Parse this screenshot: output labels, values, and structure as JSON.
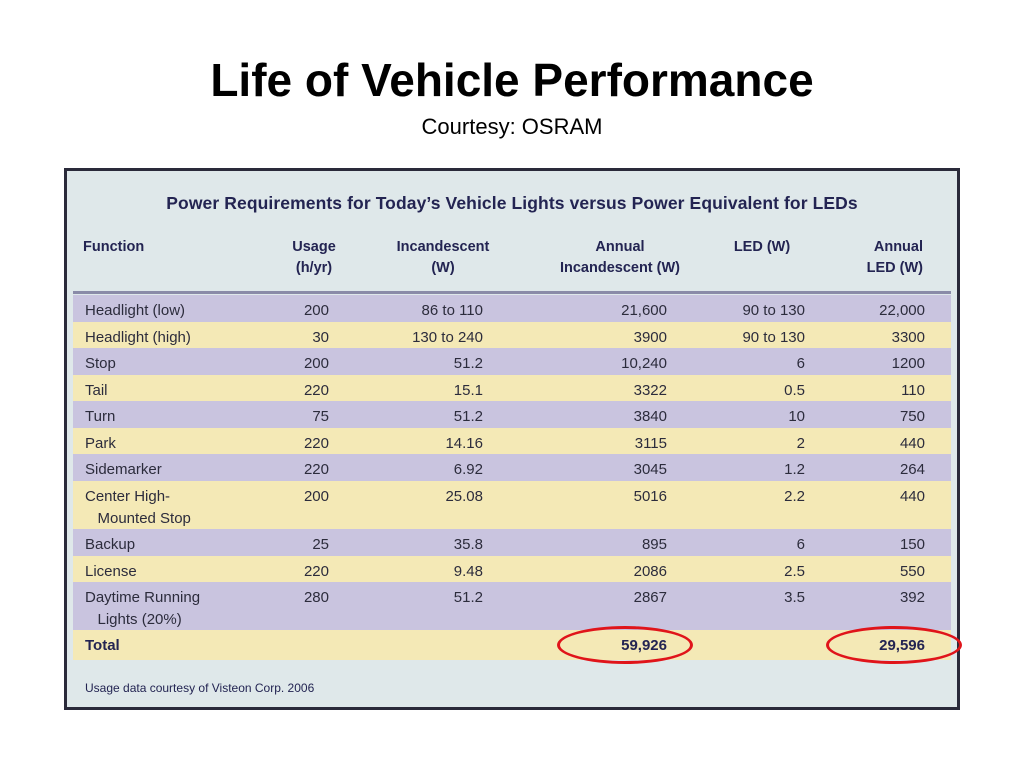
{
  "slide": {
    "title": "Life of Vehicle Performance",
    "subtitle": "Courtesy: OSRAM"
  },
  "table": {
    "title": "Power Requirements for Today’s Vehicle Lights versus Power Equivalent for LEDs",
    "headers": [
      {
        "l1": "Function",
        "l2": ""
      },
      {
        "l1": "Usage",
        "l2": "(h/yr)"
      },
      {
        "l1": "Incandescent",
        "l2": "(W)"
      },
      {
        "l1": "Annual",
        "l2": "Incandescent (W)"
      },
      {
        "l1": "LED (W)",
        "l2": ""
      },
      {
        "l1": "Annual",
        "l2": "LED (W)"
      }
    ],
    "rows": [
      {
        "function": "Headlight (low)",
        "usage": "200",
        "incandescent": "86 to 110",
        "annual_incandescent": "21,600",
        "led": "90 to 130",
        "annual_led": "22,000"
      },
      {
        "function": "Headlight (high)",
        "usage": "30",
        "incandescent": "130 to 240",
        "annual_incandescent": "3900",
        "led": "90 to 130",
        "annual_led": "3300"
      },
      {
        "function": "Stop",
        "usage": "200",
        "incandescent": "51.2",
        "annual_incandescent": "10,240",
        "led": "6",
        "annual_led": "1200"
      },
      {
        "function": "Tail",
        "usage": "220",
        "incandescent": "15.1",
        "annual_incandescent": "3322",
        "led": "0.5",
        "annual_led": "110"
      },
      {
        "function": "Turn",
        "usage": "75",
        "incandescent": "51.2",
        "annual_incandescent": "3840",
        "led": "10",
        "annual_led": "750"
      },
      {
        "function": "Park",
        "usage": "220",
        "incandescent": "14.16",
        "annual_incandescent": "3115",
        "led": "2",
        "annual_led": "440"
      },
      {
        "function": "Sidemarker",
        "usage": "220",
        "incandescent": "6.92",
        "annual_incandescent": "3045",
        "led": "1.2",
        "annual_led": "264"
      },
      {
        "function": "Center High- \n   Mounted Stop",
        "usage": "200",
        "incandescent": "25.08",
        "annual_incandescent": "5016",
        "led": "2.2",
        "annual_led": "440"
      },
      {
        "function": "Backup",
        "usage": "25",
        "incandescent": "35.8",
        "annual_incandescent": "895",
        "led": "6",
        "annual_led": "150"
      },
      {
        "function": "License",
        "usage": "220",
        "incandescent": "9.48",
        "annual_incandescent": "2086",
        "led": "2.5",
        "annual_led": "550"
      },
      {
        "function": "Daytime Running\n   Lights (20%)",
        "usage": "280",
        "incandescent": "51.2",
        "annual_incandescent": "2867",
        "led": "3.5",
        "annual_led": "392"
      }
    ],
    "total": {
      "function": "Total",
      "annual_incandescent": "59,926",
      "annual_led": "29,596"
    },
    "footnote": "Usage data courtesy of Visteon Corp. 2006"
  },
  "colors": {
    "highlight_circle": "#e0141a",
    "row_shaded": "#c9c4df",
    "row_plain": "#f4e9b6",
    "header_text": "#232452"
  }
}
